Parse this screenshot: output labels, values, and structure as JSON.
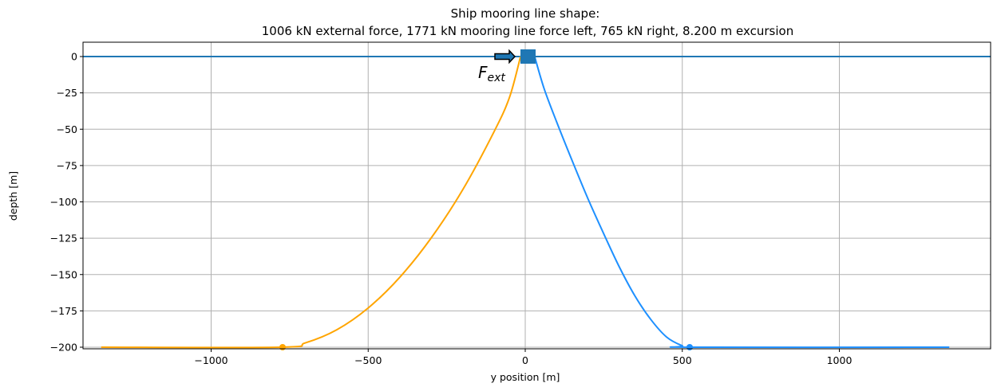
{
  "figure": {
    "title_line1": "Ship mooring line shape:",
    "title_line2": "1006 kN external force, 1771 kN mooring line force left, 765 kN right, 8.200 m excursion",
    "xlabel": "y position [m]",
    "ylabel": "depth [m]",
    "annotation_main": "F",
    "annotation_sub": "ext"
  },
  "colors": {
    "left_line": "#FFA500",
    "right_line": "#1E90FF",
    "surface": "#1F77B4",
    "ship": "#1F77B4",
    "grid": "#B0B0B0"
  },
  "chart_data": {
    "type": "line",
    "title": "Ship mooring line shape:\n1006 kN external force, 1771 kN mooring line force left, 765 kN right, 8.200 m excursion",
    "xlabel": "y position [m]",
    "ylabel": "depth [m]",
    "xlim": [
      -1480,
      1480
    ],
    "ylim": [
      -201,
      10
    ],
    "xticks": [
      -1000,
      -500,
      0,
      500,
      1000
    ],
    "xtick_labels": [
      "−1000",
      "−500",
      "0",
      "500",
      "1000"
    ],
    "yticks": [
      0,
      -25,
      -50,
      -75,
      -100,
      -125,
      -150,
      -175,
      -200
    ],
    "ytick_labels": [
      "0",
      "−25",
      "−50",
      "−75",
      "−100",
      "−125",
      "−150",
      "−175",
      "−200"
    ],
    "grid": true,
    "series": [
      {
        "name": "left mooring line",
        "color": "#FFA500",
        "x": [
          -1350,
          -780,
          -700,
          -600,
          -500,
          -400,
          -300,
          -200,
          -100,
          -50,
          -15
        ],
        "y": [
          -200,
          -200,
          -197,
          -188,
          -173,
          -152,
          -125,
          -92,
          -52,
          -28,
          0
        ],
        "touchdown_point": [
          -780,
          -200
        ]
      },
      {
        "name": "right mooring line",
        "color": "#1E90FF",
        "x": [
          30,
          60,
          100,
          150,
          200,
          250,
          300,
          350,
          400,
          450,
          500,
          530,
          1350
        ],
        "y": [
          0,
          -22,
          -45,
          -72,
          -98,
          -122,
          -145,
          -165,
          -181,
          -193,
          -199,
          -200,
          -200
        ],
        "touchdown_point": [
          530,
          -200
        ]
      },
      {
        "name": "sea surface",
        "color": "#1F77B4",
        "x": [
          -1480,
          1480
        ],
        "y": [
          0,
          0
        ]
      }
    ],
    "annotations": [
      {
        "type": "marker",
        "shape": "square",
        "label": "ship",
        "x": 8.2,
        "y": 0,
        "color": "#1F77B4"
      },
      {
        "type": "arrow",
        "label": "F_ext",
        "direction": "right",
        "x_from": -100,
        "x_to": -20,
        "y": 0
      }
    ]
  }
}
